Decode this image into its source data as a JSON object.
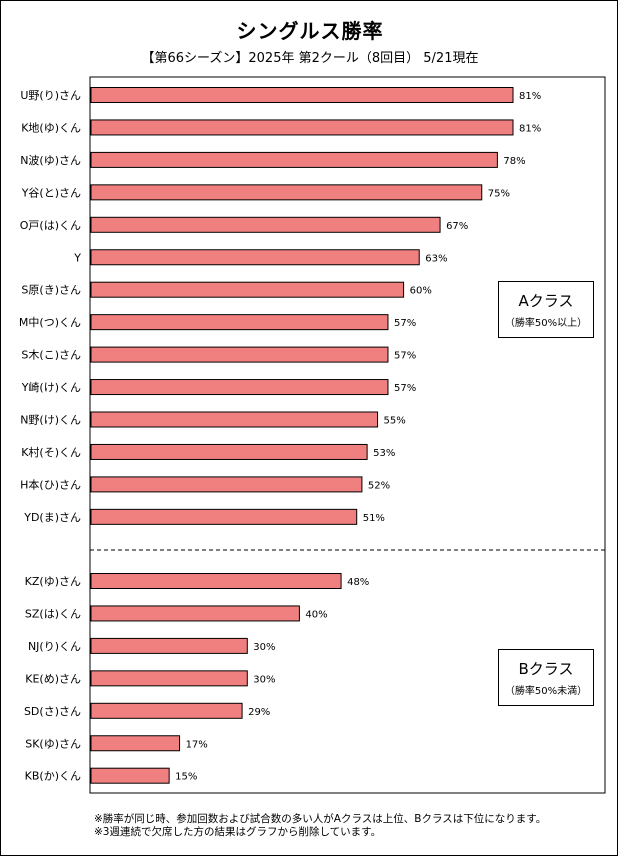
{
  "chart_data": {
    "type": "bar",
    "orientation": "horizontal",
    "title": "シングルス勝率",
    "subtitle": "【第66シーズン】2025年 第2クール（8回目） 5/21現在",
    "xlim": [
      0,
      100
    ],
    "value_suffix": "%",
    "bar_color": "#f08080",
    "groups": [
      {
        "name": "Aクラス",
        "description": "（勝率50%以上）",
        "categories": [
          "U野(り)さん",
          "K地(ゆ)くん",
          "N波(ゆ)さん",
          "Y谷(と)さん",
          "O戸(は)くん",
          "Y",
          "S原(き)さん",
          "M中(つ)くん",
          "S木(こ)さん",
          "Y崎(け)くん",
          "N野(け)くん",
          "K村(そ)くん",
          "H本(ひ)さん",
          "YD(ま)さん"
        ],
        "values": [
          81,
          81,
          78,
          75,
          67,
          63,
          60,
          57,
          57,
          57,
          55,
          53,
          52,
          51
        ]
      },
      {
        "name": "Bクラス",
        "description": "（勝率50%未満）",
        "categories": [
          "KZ(ゆ)さん",
          "SZ(は)くん",
          "NJ(り)くん",
          "KE(め)さん",
          "SD(さ)さん",
          "SK(ゆ)さん",
          "KB(か)くん"
        ],
        "values": [
          48,
          40,
          30,
          30,
          29,
          17,
          15
        ]
      }
    ]
  },
  "notes": [
    "※勝率が同じ時、参加回数および試合数の多い人がAクラスは上位、Bクラスは下位になります。",
    "※3週連続で欠席した方の結果はグラフから削除しています。"
  ]
}
